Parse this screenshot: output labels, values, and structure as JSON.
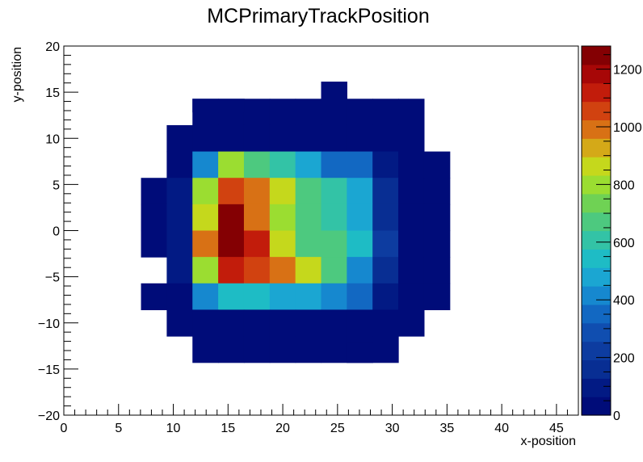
{
  "chart_data": {
    "type": "heatmap",
    "title": "MCPrimaryTrackPosition",
    "xlabel": "x-position",
    "ylabel": "y-position",
    "xlim": [
      0,
      47
    ],
    "ylim": [
      -20,
      20
    ],
    "bin_width_x": 2.35,
    "bin_width_y": 2.857,
    "x_bin_lo": [
      7.05,
      9.4,
      11.75,
      14.1,
      16.45,
      18.8,
      21.15,
      23.5,
      25.85,
      28.2,
      30.55,
      32.9
    ],
    "y_bin_lo": [
      11.429,
      8.571,
      5.714,
      2.857,
      0.0,
      -2.857,
      -5.714,
      -8.571,
      -11.429,
      -14.286
    ],
    "x_ticks": [
      "0",
      "5",
      "10",
      "15",
      "20",
      "25",
      "30",
      "35",
      "40",
      "45"
    ],
    "x_tick_values": [
      0,
      5,
      10,
      15,
      20,
      25,
      30,
      35,
      40,
      45
    ],
    "y_ticks": [
      "20",
      "15",
      "10",
      "5",
      "0",
      "−5",
      "−10",
      "−15",
      "−20"
    ],
    "y_tick_values": [
      20,
      15,
      10,
      5,
      0,
      -5,
      -10,
      -15,
      -20
    ],
    "z_max": 1280,
    "z_ticks": [
      "0",
      "200",
      "400",
      "600",
      "800",
      "1000",
      "1200"
    ],
    "z_tick_values": [
      0,
      200,
      400,
      600,
      800,
      1000,
      1200
    ],
    "extra_cells": [
      {
        "x_lo": 11.75,
        "x_hi": 16.45,
        "y_lo": 12.857,
        "y_hi": 14.286,
        "value": 20
      },
      {
        "x_lo": 23.5,
        "x_hi": 25.85,
        "y_lo": 14.286,
        "y_hi": 16.143,
        "value": 20
      },
      {
        "x_lo": 25.85,
        "x_hi": 28.2,
        "y_lo": -14.286,
        "y_hi": -12.143,
        "value": 20
      }
    ],
    "values": [
      [
        0,
        0,
        20,
        20,
        20,
        20,
        20,
        20,
        20,
        20,
        20,
        0
      ],
      [
        0,
        20,
        40,
        40,
        40,
        40,
        40,
        20,
        20,
        20,
        20,
        0
      ],
      [
        0,
        20,
        420,
        770,
        700,
        580,
        480,
        380,
        340,
        110,
        20,
        20
      ],
      [
        20,
        80,
        770,
        1040,
        980,
        860,
        700,
        620,
        450,
        140,
        20,
        20
      ],
      [
        20,
        80,
        860,
        1250,
        990,
        820,
        690,
        580,
        450,
        140,
        20,
        20
      ],
      [
        20,
        80,
        990,
        1270,
        1130,
        850,
        700,
        640,
        530,
        240,
        20,
        20
      ],
      [
        0,
        80,
        790,
        1150,
        1060,
        960,
        870,
        640,
        440,
        140,
        20,
        20
      ],
      [
        20,
        20,
        440,
        560,
        550,
        490,
        450,
        400,
        340,
        110,
        20,
        20
      ],
      [
        0,
        20,
        20,
        60,
        60,
        60,
        60,
        60,
        20,
        20,
        20,
        0
      ],
      [
        0,
        0,
        20,
        20,
        20,
        20,
        20,
        20,
        20,
        20,
        0,
        0
      ]
    ]
  }
}
